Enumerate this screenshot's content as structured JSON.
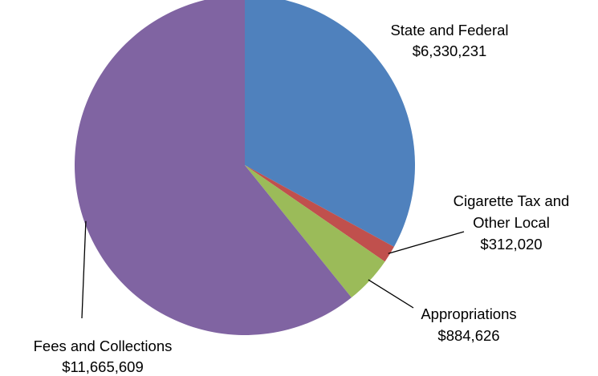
{
  "chart_data": {
    "type": "pie",
    "title": "",
    "slices": [
      {
        "label_lines": [
          "State and Federal"
        ],
        "value_label": "$6,330,231",
        "value": 6330231,
        "color": "#4F81BD"
      },
      {
        "label_lines": [
          "Cigarette Tax and",
          "Other Local"
        ],
        "value_label": "$312,020",
        "value": 312020,
        "color": "#C0504D"
      },
      {
        "label_lines": [
          "Appropriations"
        ],
        "value_label": "$884,626",
        "value": 884626,
        "color": "#9BBB59"
      },
      {
        "label_lines": [
          "Fees and Collections"
        ],
        "value_label": "$11,665,609",
        "value": 11665609,
        "color": "#8064A2"
      }
    ],
    "start_angle": "12 o'clock",
    "direction": "clockwise",
    "legend": "none",
    "data_labels": "outside with leader lines"
  }
}
